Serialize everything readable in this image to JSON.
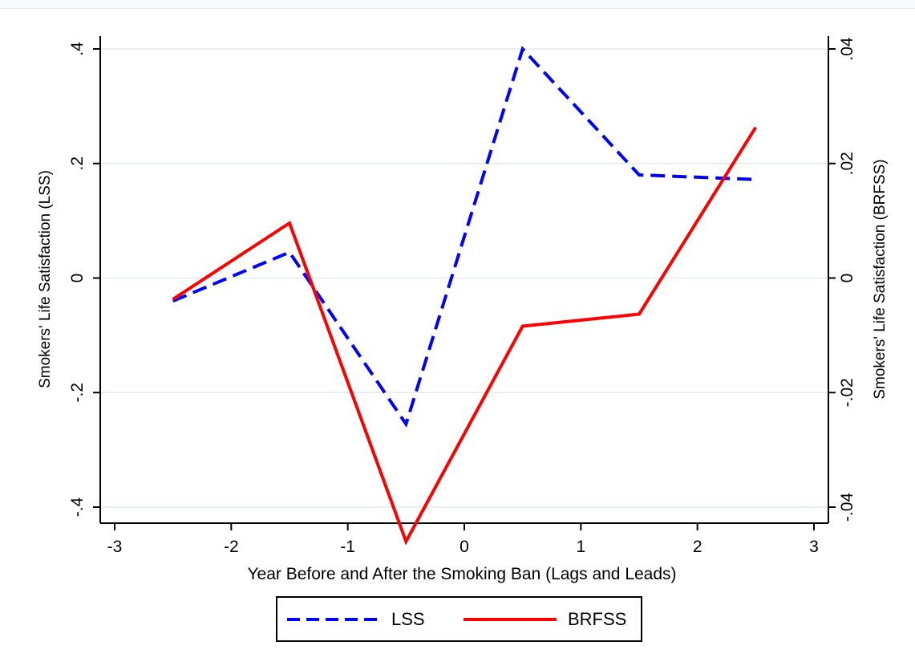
{
  "chart_data": {
    "type": "line",
    "title": "",
    "xlabel": "Year Before and After the Smoking Ban (Lags and Leads)",
    "ylabel_left": "Smokers' Life Satisfaction (LSS)",
    "ylabel_right": "Smokers' Life Satisfaction (BRFSS)",
    "xlim": [
      -3,
      3
    ],
    "ylim_left": [
      -0.4,
      0.4
    ],
    "ylim_right": [
      -0.04,
      0.04
    ],
    "x_ticks": [
      -3,
      -2,
      -1,
      0,
      1,
      2,
      3
    ],
    "x_tick_labels": [
      "-3",
      "-2",
      "-1",
      "0",
      "1",
      "2",
      "3"
    ],
    "y_left_ticks": [
      -0.4,
      -0.2,
      0,
      0.2,
      0.4
    ],
    "y_left_tick_labels": [
      "-.4",
      "-.2",
      "0",
      ".2",
      ".4"
    ],
    "y_right_ticks": [
      -0.04,
      -0.02,
      0,
      0.02,
      0.04
    ],
    "y_right_tick_labels": [
      "-.04",
      "-.02",
      "0",
      ".02",
      ".04"
    ],
    "grid": true,
    "legend_position": "bottom",
    "series": [
      {
        "name": "LSS",
        "axis": "left",
        "color": "#0000ff",
        "style": "dashed",
        "x": [
          -2.5,
          -1.5,
          -0.5,
          0.5,
          1.5,
          2.5
        ],
        "y": [
          -0.04,
          0.045,
          -0.255,
          0.4,
          0.18,
          0.172
        ]
      },
      {
        "name": "BRFSS",
        "axis": "right",
        "color": "#ff0000",
        "style": "solid",
        "x": [
          -2.5,
          -1.5,
          -0.5,
          0.5,
          1.5,
          2.5
        ],
        "y": [
          -0.0037,
          0.0096,
          -0.046,
          -0.0084,
          -0.0063,
          0.0263
        ]
      }
    ]
  }
}
